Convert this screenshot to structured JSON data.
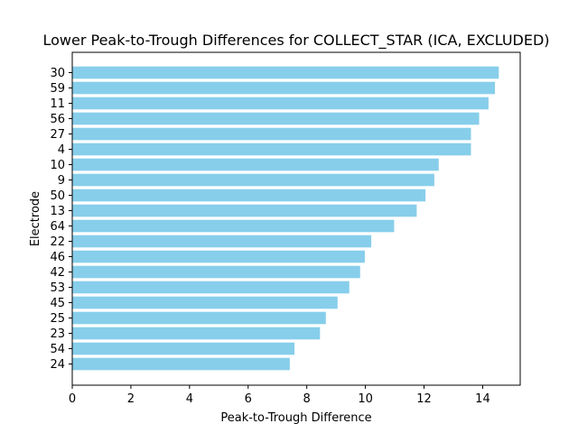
{
  "chart_data": {
    "type": "bar",
    "orientation": "horizontal",
    "title": "Lower Peak-to-Trough Differences for COLLECT_STAR (ICA, EXCLUDED)",
    "xlabel": "Peak-to-Trough Difference",
    "ylabel": "Electrode",
    "categories": [
      "30",
      "59",
      "11",
      "56",
      "27",
      "4",
      "10",
      "9",
      "50",
      "13",
      "64",
      "22",
      "46",
      "42",
      "53",
      "45",
      "25",
      "23",
      "54",
      "24"
    ],
    "values": [
      14.55,
      14.42,
      14.2,
      13.88,
      13.6,
      13.6,
      12.5,
      12.35,
      12.05,
      11.75,
      10.98,
      10.2,
      9.98,
      9.82,
      9.45,
      9.05,
      8.65,
      8.45,
      7.58,
      7.42
    ],
    "xlim": [
      0,
      15.28
    ],
    "xticks": [
      0,
      2,
      4,
      6,
      8,
      10,
      12,
      14
    ],
    "bar_color": "#87ceeb",
    "grid": false
  }
}
